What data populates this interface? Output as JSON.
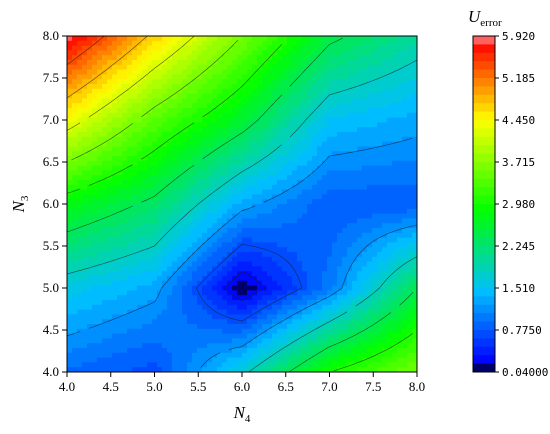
{
  "chart_data": {
    "type": "heatmap",
    "title": "",
    "xlabel": {
      "symbol": "N",
      "subscript": "4"
    },
    "ylabel": {
      "symbol": "N",
      "subscript": "3"
    },
    "colorbar_label": {
      "symbol": "U",
      "subscript": "error"
    },
    "x": [
      4.0,
      5.0,
      6.0,
      7.0,
      8.0
    ],
    "y": [
      4.0,
      5.0,
      6.0,
      7.0,
      8.0
    ],
    "xlim": [
      4.0,
      8.0
    ],
    "ylim": [
      4.0,
      8.0
    ],
    "xticks": [
      "4.0",
      "4.5",
      "5.0",
      "5.5",
      "6.0",
      "6.5",
      "7.0",
      "7.5",
      "8.0"
    ],
    "yticks": [
      "4.0",
      "4.5",
      "5.0",
      "5.5",
      "6.0",
      "6.5",
      "7.0",
      "7.5",
      "8.0"
    ],
    "z": [
      [
        0.9,
        0.7,
        1.7,
        3.0,
        3.6
      ],
      [
        1.6,
        1.3,
        0.05,
        1.0,
        2.4
      ],
      [
        2.8,
        2.3,
        1.3,
        0.8,
        0.8
      ],
      [
        4.4,
        3.4,
        2.6,
        1.5,
        1.3
      ],
      [
        5.92,
        4.7,
        3.6,
        2.5,
        2.0
      ]
    ],
    "colorbar": {
      "min": 0.04,
      "max": 5.92,
      "ticks": [
        "5.920",
        "5.185",
        "4.450",
        "3.715",
        "2.980",
        "2.245",
        "1.510",
        "0.7750",
        "0.04000"
      ]
    },
    "contour_lines": true,
    "colors": [
      "#000000",
      "#0000ff",
      "#00bfff",
      "#00ff00",
      "#ffff00",
      "#ff0000",
      "#ffffff"
    ]
  }
}
